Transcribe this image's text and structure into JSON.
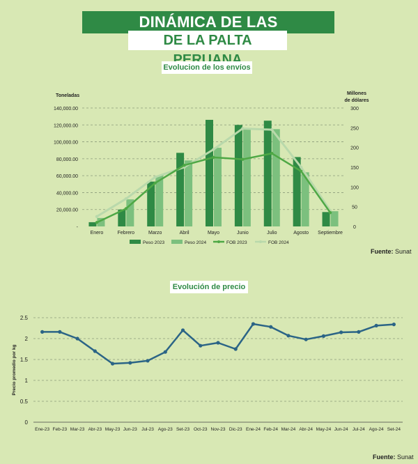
{
  "header": {
    "title_line1": "DINÁMICA DE LAS EXPORTACIONES",
    "title_line2": "DE LA PALTA PERUANA"
  },
  "colors": {
    "dark_green": "#2f8a45",
    "light_green": "#7cc07e",
    "fob2023": "#4ea845",
    "fob2024": "#b9d9ab",
    "price_line": "#2b6486",
    "background": "#d8e8b4"
  },
  "chart_data": [
    {
      "type": "bar",
      "title": "Evolucion de los envíos",
      "ylabel": "Toneladas",
      "y2label_line1": "Millones",
      "y2label_line2": "de dólares",
      "ylim": [
        0,
        140000
      ],
      "y2lim": [
        0,
        300
      ],
      "yticks": [
        "-",
        "20,000.00",
        "40,000.00",
        "60,000.00",
        "80,000.00",
        "100,000.00",
        "120,000.00",
        "140,000.00"
      ],
      "y2ticks": [
        "0",
        "50",
        "100",
        "150",
        "200",
        "250",
        "300"
      ],
      "categories": [
        "Enero",
        "Febrero",
        "Marzo",
        "Abril",
        "Mayo",
        "Junio",
        "Julio",
        "Agosto",
        "Septiembre"
      ],
      "series": [
        {
          "name": "Peso 2023",
          "kind": "bar",
          "values": [
            5000,
            20000,
            53000,
            87000,
            126000,
            120000,
            125000,
            82000,
            17000
          ]
        },
        {
          "name": "Peso 2024",
          "kind": "bar",
          "values": [
            10000,
            32000,
            60000,
            78000,
            93000,
            116000,
            115000,
            64000,
            18000
          ]
        },
        {
          "name": "FOB 2023",
          "kind": "line",
          "axis": "right",
          "values": [
            10,
            45,
            110,
            155,
            175,
            170,
            185,
            140,
            35
          ]
        },
        {
          "name": "FOB 2024",
          "kind": "line",
          "axis": "right",
          "values": [
            25,
            70,
            125,
            150,
            195,
            248,
            245,
            150,
            40
          ]
        }
      ],
      "grid": true,
      "legend": "bottom",
      "source_label": "Fuente:",
      "source": "Sunat"
    },
    {
      "type": "line",
      "title": "Evolución de precio",
      "ylabel": "Precio promedio por kg",
      "ylim": [
        0,
        2.5
      ],
      "yticks": [
        "0",
        "0.5",
        "1",
        "1.5",
        "2",
        "2.5"
      ],
      "categories": [
        "Ene-23",
        "Feb-23",
        "Mar-23",
        "Abr-23",
        "May-23",
        "Jun-23",
        "Jul-23",
        "Ago-23",
        "Set-23",
        "Oct-23",
        "Nov-23",
        "Dic-23",
        "Ene-24",
        "Feb-24",
        "Mar-24",
        "Abr-24",
        "May-24",
        "Jun-24",
        "Jul-24",
        "Ago-24",
        "Set-24"
      ],
      "series": [
        {
          "values": [
            2.16,
            2.16,
            2.0,
            1.7,
            1.4,
            1.42,
            1.47,
            1.68,
            2.2,
            1.83,
            1.9,
            1.75,
            2.35,
            2.28,
            2.07,
            1.98,
            2.06,
            2.15,
            2.16,
            2.31,
            2.34
          ]
        }
      ],
      "grid": true,
      "source_label": "Fuente:",
      "source": "Sunat"
    }
  ]
}
